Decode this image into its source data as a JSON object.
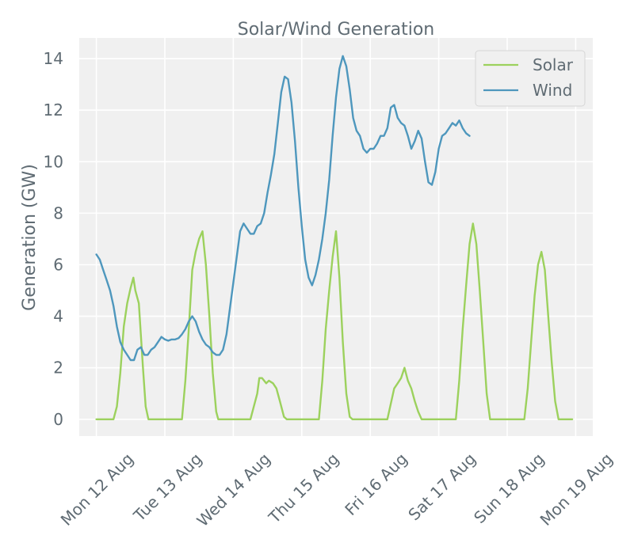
{
  "chart_data": {
    "type": "line",
    "title": "Solar/Wind Generation",
    "xlabel": "",
    "ylabel": "Generation (GW)",
    "ylim": [
      -0.65,
      14.8
    ],
    "yticks": [
      0,
      2,
      4,
      6,
      8,
      10,
      12,
      14
    ],
    "xlim_days": [
      -0.25,
      7.25
    ],
    "xticks": [
      {
        "day": 0,
        "label": "Mon 12 Aug"
      },
      {
        "day": 1,
        "label": "Tue 13 Aug"
      },
      {
        "day": 2,
        "label": "Wed 14 Aug"
      },
      {
        "day": 3,
        "label": "Thu 15 Aug"
      },
      {
        "day": 4,
        "label": "Fri 16 Aug"
      },
      {
        "day": 5,
        "label": "Sat 17 Aug"
      },
      {
        "day": 6,
        "label": "Sun 18 Aug"
      },
      {
        "day": 7,
        "label": "Mon 19 Aug"
      }
    ],
    "legend": {
      "position": "top-right"
    },
    "series": [
      {
        "name": "Solar",
        "color": "#9cd15d",
        "points": [
          [
            0,
            0
          ],
          [
            0.25,
            0
          ],
          [
            0.3,
            0.5
          ],
          [
            0.35,
            1.8
          ],
          [
            0.4,
            3.6
          ],
          [
            0.45,
            4.5
          ],
          [
            0.5,
            5.1
          ],
          [
            0.54,
            5.5
          ],
          [
            0.57,
            5.0
          ],
          [
            0.62,
            4.5
          ],
          [
            0.68,
            2.0
          ],
          [
            0.72,
            0.5
          ],
          [
            0.76,
            0
          ],
          [
            1.0,
            0
          ],
          [
            1.25,
            0
          ],
          [
            1.3,
            1.5
          ],
          [
            1.35,
            3.5
          ],
          [
            1.4,
            5.8
          ],
          [
            1.45,
            6.5
          ],
          [
            1.5,
            7.0
          ],
          [
            1.55,
            7.3
          ],
          [
            1.6,
            6.0
          ],
          [
            1.65,
            4.0
          ],
          [
            1.7,
            1.8
          ],
          [
            1.75,
            0.3
          ],
          [
            1.78,
            0
          ],
          [
            2.0,
            0
          ],
          [
            2.25,
            0
          ],
          [
            2.3,
            0.5
          ],
          [
            2.35,
            1.0
          ],
          [
            2.38,
            1.6
          ],
          [
            2.42,
            1.6
          ],
          [
            2.48,
            1.4
          ],
          [
            2.52,
            1.5
          ],
          [
            2.58,
            1.4
          ],
          [
            2.63,
            1.2
          ],
          [
            2.68,
            0.7
          ],
          [
            2.74,
            0.1
          ],
          [
            2.78,
            0
          ],
          [
            3.0,
            0
          ],
          [
            3.25,
            0
          ],
          [
            3.3,
            1.5
          ],
          [
            3.35,
            3.5
          ],
          [
            3.4,
            5.0
          ],
          [
            3.45,
            6.3
          ],
          [
            3.5,
            7.3
          ],
          [
            3.55,
            5.5
          ],
          [
            3.6,
            3.0
          ],
          [
            3.65,
            1.0
          ],
          [
            3.7,
            0.1
          ],
          [
            3.74,
            0
          ],
          [
            4.0,
            0
          ],
          [
            4.25,
            0
          ],
          [
            4.3,
            0.6
          ],
          [
            4.35,
            1.2
          ],
          [
            4.4,
            1.4
          ],
          [
            4.45,
            1.6
          ],
          [
            4.5,
            2.0
          ],
          [
            4.55,
            1.5
          ],
          [
            4.6,
            1.2
          ],
          [
            4.65,
            0.7
          ],
          [
            4.7,
            0.3
          ],
          [
            4.75,
            0
          ],
          [
            5.0,
            0
          ],
          [
            5.25,
            0
          ],
          [
            5.3,
            1.5
          ],
          [
            5.35,
            3.5
          ],
          [
            5.4,
            5.2
          ],
          [
            5.45,
            6.8
          ],
          [
            5.5,
            7.6
          ],
          [
            5.55,
            6.8
          ],
          [
            5.6,
            5.0
          ],
          [
            5.65,
            3.0
          ],
          [
            5.7,
            1.0
          ],
          [
            5.75,
            0
          ],
          [
            6.0,
            0
          ],
          [
            6.25,
            0
          ],
          [
            6.3,
            1.2
          ],
          [
            6.35,
            3.0
          ],
          [
            6.4,
            4.8
          ],
          [
            6.45,
            6.0
          ],
          [
            6.5,
            6.5
          ],
          [
            6.55,
            5.8
          ],
          [
            6.6,
            4.0
          ],
          [
            6.65,
            2.2
          ],
          [
            6.7,
            0.7
          ],
          [
            6.75,
            0
          ],
          [
            6.95,
            0
          ]
        ]
      },
      {
        "name": "Wind",
        "color": "#4e97bd",
        "points": [
          [
            0,
            6.4
          ],
          [
            0.05,
            6.2
          ],
          [
            0.1,
            5.8
          ],
          [
            0.15,
            5.4
          ],
          [
            0.2,
            5.0
          ],
          [
            0.25,
            4.4
          ],
          [
            0.3,
            3.6
          ],
          [
            0.35,
            3.0
          ],
          [
            0.4,
            2.7
          ],
          [
            0.45,
            2.5
          ],
          [
            0.5,
            2.3
          ],
          [
            0.55,
            2.3
          ],
          [
            0.6,
            2.7
          ],
          [
            0.65,
            2.8
          ],
          [
            0.7,
            2.5
          ],
          [
            0.75,
            2.5
          ],
          [
            0.8,
            2.7
          ],
          [
            0.85,
            2.8
          ],
          [
            0.9,
            3.0
          ],
          [
            0.95,
            3.2
          ],
          [
            1.0,
            3.1
          ],
          [
            1.05,
            3.05
          ],
          [
            1.1,
            3.1
          ],
          [
            1.15,
            3.1
          ],
          [
            1.2,
            3.15
          ],
          [
            1.25,
            3.3
          ],
          [
            1.3,
            3.5
          ],
          [
            1.35,
            3.8
          ],
          [
            1.4,
            4.0
          ],
          [
            1.45,
            3.8
          ],
          [
            1.5,
            3.4
          ],
          [
            1.55,
            3.1
          ],
          [
            1.6,
            2.9
          ],
          [
            1.65,
            2.8
          ],
          [
            1.7,
            2.6
          ],
          [
            1.75,
            2.5
          ],
          [
            1.8,
            2.5
          ],
          [
            1.85,
            2.7
          ],
          [
            1.9,
            3.3
          ],
          [
            1.95,
            4.3
          ],
          [
            2.0,
            5.3
          ],
          [
            2.05,
            6.3
          ],
          [
            2.1,
            7.3
          ],
          [
            2.15,
            7.6
          ],
          [
            2.2,
            7.4
          ],
          [
            2.25,
            7.2
          ],
          [
            2.3,
            7.2
          ],
          [
            2.35,
            7.5
          ],
          [
            2.4,
            7.6
          ],
          [
            2.45,
            8.0
          ],
          [
            2.5,
            8.8
          ],
          [
            2.55,
            9.5
          ],
          [
            2.6,
            10.3
          ],
          [
            2.65,
            11.5
          ],
          [
            2.7,
            12.7
          ],
          [
            2.75,
            13.3
          ],
          [
            2.8,
            13.2
          ],
          [
            2.85,
            12.3
          ],
          [
            2.9,
            10.8
          ],
          [
            2.95,
            9.0
          ],
          [
            3.0,
            7.5
          ],
          [
            3.05,
            6.2
          ],
          [
            3.1,
            5.5
          ],
          [
            3.15,
            5.2
          ],
          [
            3.2,
            5.6
          ],
          [
            3.25,
            6.2
          ],
          [
            3.3,
            7.0
          ],
          [
            3.35,
            8.0
          ],
          [
            3.4,
            9.3
          ],
          [
            3.45,
            11.0
          ],
          [
            3.5,
            12.5
          ],
          [
            3.55,
            13.6
          ],
          [
            3.6,
            14.1
          ],
          [
            3.65,
            13.7
          ],
          [
            3.7,
            12.8
          ],
          [
            3.75,
            11.7
          ],
          [
            3.8,
            11.2
          ],
          [
            3.85,
            11.0
          ],
          [
            3.9,
            10.5
          ],
          [
            3.95,
            10.35
          ],
          [
            4.0,
            10.5
          ],
          [
            4.05,
            10.5
          ],
          [
            4.1,
            10.7
          ],
          [
            4.15,
            11.0
          ],
          [
            4.2,
            11.0
          ],
          [
            4.25,
            11.3
          ],
          [
            4.3,
            12.1
          ],
          [
            4.35,
            12.2
          ],
          [
            4.4,
            11.7
          ],
          [
            4.45,
            11.5
          ],
          [
            4.5,
            11.4
          ],
          [
            4.55,
            11.0
          ],
          [
            4.6,
            10.5
          ],
          [
            4.65,
            10.8
          ],
          [
            4.7,
            11.2
          ],
          [
            4.75,
            10.9
          ],
          [
            4.8,
            10.0
          ],
          [
            4.85,
            9.2
          ],
          [
            4.9,
            9.1
          ],
          [
            4.95,
            9.6
          ],
          [
            5.0,
            10.5
          ],
          [
            5.05,
            11.0
          ],
          [
            5.1,
            11.1
          ],
          [
            5.15,
            11.3
          ],
          [
            5.2,
            11.5
          ],
          [
            5.25,
            11.4
          ],
          [
            5.3,
            11.6
          ],
          [
            5.35,
            11.3
          ],
          [
            5.4,
            11.1
          ],
          [
            5.45,
            11.0
          ]
        ]
      }
    ]
  }
}
